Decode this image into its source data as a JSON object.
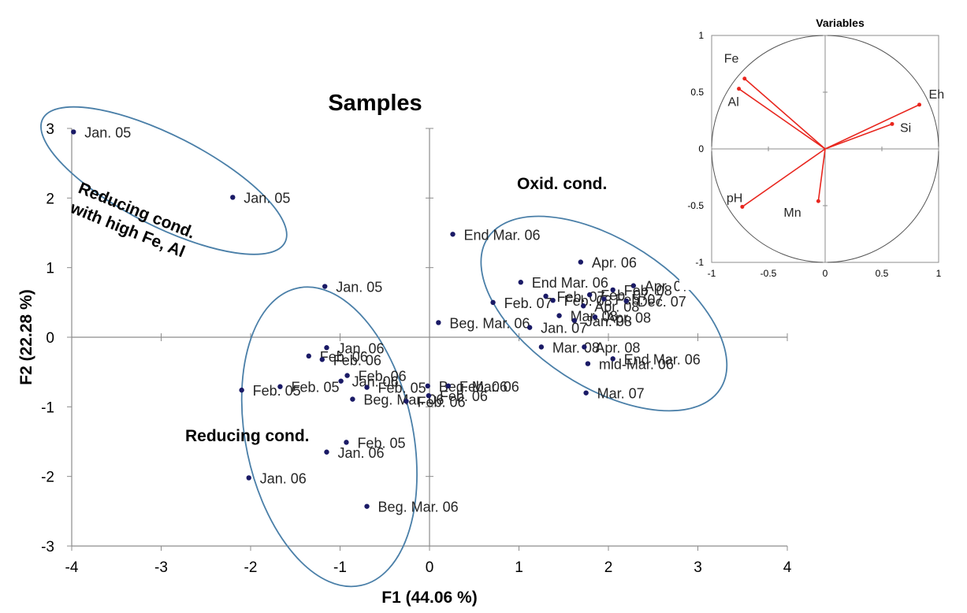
{
  "chart_data": [
    {
      "type": "scatter",
      "title": "Samples",
      "xlabel": "F1 (44.06 %)",
      "ylabel": "F2 (22.28 %)",
      "xlim": [
        -4,
        4
      ],
      "ylim": [
        -3,
        3
      ],
      "xticks": [
        "-4",
        "-3",
        "-2",
        "-1",
        "0",
        "1",
        "2",
        "3",
        "4"
      ],
      "yticks": [
        "-3",
        "-2",
        "-1",
        "0",
        "1",
        "2",
        "3"
      ],
      "grid": false,
      "marker_color": "#1a1a66",
      "points": [
        {
          "x": -3.98,
          "y": 2.95,
          "label": "Jan. 05"
        },
        {
          "x": -2.2,
          "y": 2.01,
          "label": "Jan. 05"
        },
        {
          "x": -1.17,
          "y": 0.73,
          "label": "Jan. 05"
        },
        {
          "x": -1.15,
          "y": -0.15,
          "label": "Jan. 06"
        },
        {
          "x": -1.35,
          "y": -0.27,
          "label": "Feb. 06"
        },
        {
          "x": -1.2,
          "y": -0.32,
          "label": "Feb. 06"
        },
        {
          "x": -0.92,
          "y": -0.55,
          "label": "Feb. 06"
        },
        {
          "x": -1.67,
          "y": -0.71,
          "label": "Feb. 05"
        },
        {
          "x": -2.1,
          "y": -0.76,
          "label": "Feb. 05"
        },
        {
          "x": -0.99,
          "y": -0.63,
          "label": "Jan. 06"
        },
        {
          "x": -0.7,
          "y": -0.72,
          "label": "Feb. 05"
        },
        {
          "x": -0.86,
          "y": -0.89,
          "label": "Beg. Mar. 06"
        },
        {
          "x": -0.26,
          "y": -0.92,
          "label": "Feb. 06"
        },
        {
          "x": -0.02,
          "y": -0.7,
          "label": "Beg. Mar. 06"
        },
        {
          "x": -0.01,
          "y": -0.84,
          "label": "Feb. 06"
        },
        {
          "x": 0.21,
          "y": -0.7,
          "label": "Feb. 06"
        },
        {
          "x": -0.93,
          "y": -1.51,
          "label": "Feb. 05"
        },
        {
          "x": -1.15,
          "y": -1.65,
          "label": "Jan. 06"
        },
        {
          "x": -2.02,
          "y": -2.02,
          "label": "Jan. 06"
        },
        {
          "x": -0.7,
          "y": -2.43,
          "label": "Beg. Mar. 06"
        },
        {
          "x": 0.26,
          "y": 1.48,
          "label": "End Mar. 06"
        },
        {
          "x": 1.02,
          "y": 0.79,
          "label": "End Mar. 06"
        },
        {
          "x": 1.69,
          "y": 1.08,
          "label": "Apr. 06"
        },
        {
          "x": 0.71,
          "y": 0.5,
          "label": "Feb. 07"
        },
        {
          "x": 1.3,
          "y": 0.59,
          "label": "Feb. 07"
        },
        {
          "x": 1.79,
          "y": 0.61,
          "label": "Feb. 07"
        },
        {
          "x": 2.28,
          "y": 0.74,
          "label": "Apr. 07"
        },
        {
          "x": 2.05,
          "y": 0.68,
          "label": "Feb. 08"
        },
        {
          "x": 1.38,
          "y": 0.53,
          "label": "Feb. 08"
        },
        {
          "x": 1.95,
          "y": 0.55,
          "label": "Feb. 07"
        },
        {
          "x": 1.72,
          "y": 0.45,
          "label": "Apr. 08"
        },
        {
          "x": 2.2,
          "y": 0.52,
          "label": "Dec. 07"
        },
        {
          "x": 1.45,
          "y": 0.31,
          "label": "Mar. 08"
        },
        {
          "x": 1.62,
          "y": 0.24,
          "label": "Jan. 08"
        },
        {
          "x": 1.85,
          "y": 0.29,
          "label": "Apr. 08"
        },
        {
          "x": 0.1,
          "y": 0.21,
          "label": "Beg. Mar. 06"
        },
        {
          "x": 1.12,
          "y": 0.14,
          "label": "Jan. 07"
        },
        {
          "x": 1.25,
          "y": -0.14,
          "label": "Mar. 08"
        },
        {
          "x": 1.73,
          "y": -0.14,
          "label": "Apr. 08"
        },
        {
          "x": 2.05,
          "y": -0.31,
          "label": "End Mar. 06"
        },
        {
          "x": 1.77,
          "y": -0.38,
          "label": "mid-Mar. 06"
        },
        {
          "x": 1.75,
          "y": -0.8,
          "label": "Mar. 07"
        }
      ],
      "groups": [
        {
          "label": "Reducing cond.\nwith high Fe, Al",
          "color": "#4a7fa8"
        },
        {
          "label": "Oxid. cond.",
          "color": "#4a7fa8"
        },
        {
          "label": "Reducing cond.",
          "color": "#4a7fa8"
        }
      ]
    },
    {
      "type": "scatter",
      "subtype": "correlation-circle",
      "title": "Variables",
      "xlim": [
        -1,
        1
      ],
      "ylim": [
        -1,
        1
      ],
      "xticks": [
        "-1",
        "-0.5",
        "0",
        "0.5",
        "1"
      ],
      "yticks": [
        "-1",
        "-0.5",
        "0",
        "0.5",
        "1"
      ],
      "vector_color": "#e8261e",
      "vectors": [
        {
          "name": "Fe",
          "x": -0.71,
          "y": 0.62
        },
        {
          "name": "Al",
          "x": -0.76,
          "y": 0.53
        },
        {
          "name": "Eh",
          "x": 0.83,
          "y": 0.39
        },
        {
          "name": "Si",
          "x": 0.59,
          "y": 0.22
        },
        {
          "name": "pH",
          "x": -0.73,
          "y": -0.51
        },
        {
          "name": "Mn",
          "x": -0.06,
          "y": -0.46
        }
      ]
    }
  ]
}
